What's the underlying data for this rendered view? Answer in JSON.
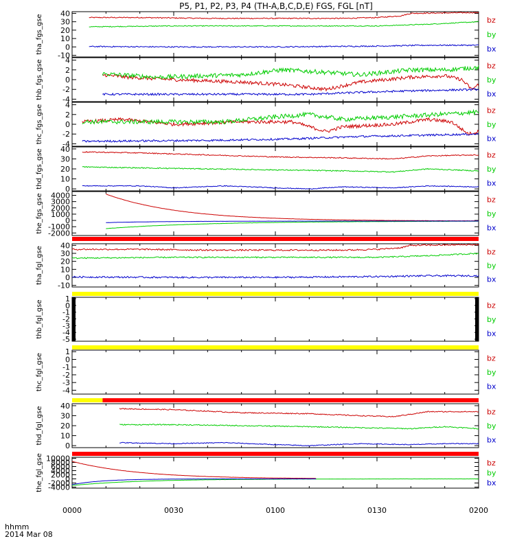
{
  "title": "P5, P1, P2, P3, P4 (TH-A,B,C,D,E) FGS, FGL [nT]",
  "footer": {
    "label1": "hhmm",
    "label2": "2014 Mar 08"
  },
  "colors": {
    "bz": "#cc0000",
    "by": "#00cc00",
    "bx": "#0000cc",
    "red_bar": "#ff0000",
    "yellow_bar": "#ffff00"
  },
  "chart_data": {
    "type": "line",
    "x_axis": {
      "start_hhmm": "0000",
      "end_hhmm": "0200",
      "tick_labels": [
        "0000",
        "0030",
        "0100",
        "0130",
        "0200"
      ]
    },
    "panels": [
      {
        "ylabel": "tha_fgs_gse",
        "yticks": [
          40,
          30,
          20,
          10,
          0,
          -10
        ],
        "ylim": [
          -12,
          42
        ],
        "series": [
          {
            "name": "bz",
            "start_min": 5,
            "end_min": 120,
            "points": [
              [
                5,
                35
              ],
              [
                20,
                35
              ],
              [
                40,
                34
              ],
              [
                60,
                34
              ],
              [
                80,
                34
              ],
              [
                90,
                35
              ],
              [
                97,
                37
              ],
              [
                100,
                40
              ],
              [
                120,
                41
              ]
            ],
            "noise": 0.6
          },
          {
            "name": "by",
            "start_min": 5,
            "end_min": 120,
            "points": [
              [
                5,
                24
              ],
              [
                30,
                25
              ],
              [
                60,
                25
              ],
              [
                90,
                25
              ],
              [
                105,
                27
              ],
              [
                120,
                30
              ]
            ],
            "noise": 0.5
          },
          {
            "name": "bx",
            "start_min": 5,
            "end_min": 120,
            "points": [
              [
                5,
                0.5
              ],
              [
                30,
                0
              ],
              [
                60,
                0
              ],
              [
                90,
                1
              ],
              [
                105,
                2
              ],
              [
                120,
                2
              ]
            ],
            "noise": 0.7
          }
        ]
      },
      {
        "ylabel": "thb_fgs_gse",
        "yticks": [
          4,
          2,
          0,
          -2,
          -4
        ],
        "ylim": [
          -4.5,
          4.5
        ],
        "series": [
          {
            "name": "bz",
            "start_min": 9,
            "end_min": 120,
            "points": [
              [
                9,
                1
              ],
              [
                16,
                0.5
              ],
              [
                30,
                0
              ],
              [
                50,
                -0.5
              ],
              [
                62,
                -1
              ],
              [
                75,
                -2
              ],
              [
                85,
                -0.5
              ],
              [
                100,
                0.5
              ],
              [
                110,
                0.8
              ],
              [
                115,
                0
              ],
              [
                118,
                -2
              ],
              [
                120,
                -1
              ]
            ],
            "noise": 0.35
          },
          {
            "name": "by",
            "start_min": 9,
            "end_min": 120,
            "points": [
              [
                9,
                1.2
              ],
              [
                25,
                0.5
              ],
              [
                50,
                1
              ],
              [
                62,
                2
              ],
              [
                75,
                1.5
              ],
              [
                85,
                1
              ],
              [
                100,
                2
              ],
              [
                110,
                2
              ],
              [
                120,
                2.5
              ]
            ],
            "noise": 0.45
          },
          {
            "name": "bx",
            "start_min": 9,
            "end_min": 120,
            "points": [
              [
                9,
                -3
              ],
              [
                40,
                -3
              ],
              [
                70,
                -3
              ],
              [
                85,
                -2.6
              ],
              [
                100,
                -2.3
              ],
              [
                120,
                -2
              ]
            ],
            "noise": 0.2
          }
        ]
      },
      {
        "ylabel": "thc_fgs_gse",
        "yticks": [
          4,
          2,
          0,
          -2,
          -4
        ],
        "ylim": [
          -4.5,
          4.5
        ],
        "series": [
          {
            "name": "bz",
            "start_min": 3,
            "end_min": 120,
            "points": [
              [
                3,
                0.5
              ],
              [
                15,
                1
              ],
              [
                30,
                0
              ],
              [
                50,
                0.5
              ],
              [
                65,
                0.5
              ],
              [
                75,
                -1.5
              ],
              [
                80,
                -0.5
              ],
              [
                95,
                0
              ],
              [
                105,
                1
              ],
              [
                112,
                0.5
              ],
              [
                117,
                -2
              ],
              [
                120,
                -1.5
              ]
            ],
            "noise": 0.35
          },
          {
            "name": "by",
            "start_min": 3,
            "end_min": 120,
            "points": [
              [
                3,
                0.5
              ],
              [
                20,
                0.5
              ],
              [
                45,
                0.5
              ],
              [
                60,
                1.5
              ],
              [
                70,
                2
              ],
              [
                80,
                1
              ],
              [
                95,
                1.5
              ],
              [
                108,
                2
              ],
              [
                120,
                2.5
              ]
            ],
            "noise": 0.45
          },
          {
            "name": "bx",
            "start_min": 3,
            "end_min": 120,
            "points": [
              [
                3,
                -3.5
              ],
              [
                40,
                -3.3
              ],
              [
                65,
                -3
              ],
              [
                85,
                -2.5
              ],
              [
                100,
                -2.3
              ],
              [
                120,
                -2
              ]
            ],
            "noise": 0.2
          }
        ]
      },
      {
        "ylabel": "thd_fgs_gse",
        "yticks": [
          40,
          30,
          20,
          10,
          0
        ],
        "ylim": [
          -2,
          42
        ],
        "series": [
          {
            "name": "bz",
            "start_min": 3,
            "end_min": 120,
            "points": [
              [
                3,
                37
              ],
              [
                20,
                36
              ],
              [
                40,
                34
              ],
              [
                60,
                32
              ],
              [
                80,
                31
              ],
              [
                95,
                30
              ],
              [
                105,
                33
              ],
              [
                120,
                34
              ]
            ],
            "noise": 0.5
          },
          {
            "name": "by",
            "start_min": 3,
            "end_min": 120,
            "points": [
              [
                3,
                22
              ],
              [
                20,
                21
              ],
              [
                40,
                20
              ],
              [
                60,
                19
              ],
              [
                80,
                18
              ],
              [
                95,
                17
              ],
              [
                105,
                20
              ],
              [
                120,
                18
              ]
            ],
            "noise": 0.5
          },
          {
            "name": "bx",
            "start_min": 3,
            "end_min": 120,
            "points": [
              [
                3,
                3
              ],
              [
                20,
                3
              ],
              [
                30,
                1
              ],
              [
                45,
                3
              ],
              [
                60,
                1
              ],
              [
                70,
                0
              ],
              [
                80,
                2
              ],
              [
                95,
                1
              ],
              [
                105,
                3
              ],
              [
                120,
                2
              ]
            ],
            "noise": 0.4
          }
        ]
      },
      {
        "ylabel": "the_fgs_gse",
        "yticks": [
          4000,
          3000,
          2000,
          1000,
          0,
          -1000,
          -2000
        ],
        "ylim": [
          -2400,
          4600
        ],
        "series": [
          {
            "name": "bz",
            "start_min": 10,
            "end_min": 120,
            "curve": "decay",
            "a": 4200,
            "b": -100,
            "tau": 22,
            "noise": 15
          },
          {
            "name": "by",
            "start_min": 10,
            "end_min": 120,
            "curve": "rise",
            "a": -1300,
            "b": -100,
            "tau": 30,
            "noise": 15
          },
          {
            "name": "bx",
            "start_min": 10,
            "end_min": 120,
            "curve": "rise",
            "a": -350,
            "b": -100,
            "tau": 18,
            "noise": 10
          }
        ],
        "bar": {
          "color": "red",
          "segments": [
            [
              0,
              120
            ]
          ]
        }
      },
      {
        "ylabel": "tha_fgl_gse",
        "yticks": [
          40,
          30,
          20,
          10,
          0,
          -10
        ],
        "ylim": [
          -12,
          42
        ],
        "series": [
          {
            "name": "bz",
            "start_min": 0,
            "end_min": 120,
            "points": [
              [
                0,
                35
              ],
              [
                20,
                35
              ],
              [
                40,
                34
              ],
              [
                60,
                34
              ],
              [
                80,
                34
              ],
              [
                90,
                35
              ],
              [
                97,
                37
              ],
              [
                100,
                40
              ],
              [
                120,
                41
              ]
            ],
            "noise": 0.9
          },
          {
            "name": "by",
            "start_min": 0,
            "end_min": 120,
            "points": [
              [
                0,
                24
              ],
              [
                30,
                25
              ],
              [
                60,
                25
              ],
              [
                90,
                25
              ],
              [
                105,
                27
              ],
              [
                120,
                30
              ]
            ],
            "noise": 0.8
          },
          {
            "name": "bx",
            "start_min": 0,
            "end_min": 120,
            "points": [
              [
                0,
                0.5
              ],
              [
                30,
                0
              ],
              [
                60,
                0
              ],
              [
                90,
                1
              ],
              [
                105,
                2
              ],
              [
                120,
                2
              ]
            ],
            "noise": 1.0
          }
        ],
        "bar": {
          "color": "yellow",
          "segments": [
            [
              0,
              120
            ]
          ]
        }
      },
      {
        "ylabel": "thb_fgl_gse",
        "yticks": [
          1,
          0,
          -1,
          -2,
          -3,
          -4,
          -5
        ],
        "ylim": [
          -5.3,
          1.2
        ],
        "series": [],
        "edge_marks": true,
        "bar": {
          "color": "yellow",
          "segments": [
            [
              0,
              120
            ]
          ]
        }
      },
      {
        "ylabel": "thc_fgl_gse",
        "yticks": [
          1,
          0,
          -1,
          -2,
          -3,
          -4
        ],
        "ylim": [
          -4.5,
          1.2
        ],
        "series": [],
        "bar": {
          "color": "split",
          "segments": [
            [
              0,
              9,
              "yellow"
            ],
            [
              9,
              120,
              "red"
            ]
          ]
        }
      },
      {
        "ylabel": "thd_fgl_gse",
        "yticks": [
          40,
          30,
          20,
          10,
          0
        ],
        "ylim": [
          -2,
          42
        ],
        "series": [
          {
            "name": "bz",
            "start_min": 14,
            "end_min": 120,
            "points": [
              [
                14,
                37
              ],
              [
                30,
                36
              ],
              [
                50,
                33
              ],
              [
                70,
                32
              ],
              [
                85,
                30
              ],
              [
                95,
                29
              ],
              [
                105,
                34
              ],
              [
                120,
                34
              ]
            ],
            "noise": 0.5
          },
          {
            "name": "by",
            "start_min": 14,
            "end_min": 120,
            "points": [
              [
                14,
                21
              ],
              [
                30,
                21
              ],
              [
                50,
                20
              ],
              [
                70,
                19
              ],
              [
                85,
                18
              ],
              [
                100,
                17
              ],
              [
                110,
                19
              ],
              [
                120,
                17
              ]
            ],
            "noise": 0.5
          },
          {
            "name": "bx",
            "start_min": 14,
            "end_min": 120,
            "points": [
              [
                14,
                3
              ],
              [
                30,
                2
              ],
              [
                45,
                3
              ],
              [
                60,
                1
              ],
              [
                70,
                0
              ],
              [
                85,
                2
              ],
              [
                100,
                1
              ],
              [
                110,
                2
              ],
              [
                120,
                2
              ]
            ],
            "noise": 0.4
          }
        ],
        "bar": {
          "color": "red",
          "segments": [
            [
              0,
              120
            ]
          ]
        }
      },
      {
        "ylabel": "the_fgl_gse",
        "yticks": [
          10000,
          8000,
          6000,
          4000,
          2000,
          0,
          -2000,
          -4000
        ],
        "ylim": [
          -4500,
          10500
        ],
        "series": [
          {
            "name": "bz",
            "start_min": 0,
            "end_min": 72,
            "curve": "decay",
            "a": 8500,
            "b": 0,
            "tau": 20,
            "noise": 40
          },
          {
            "name": "by",
            "start_min": 0,
            "end_min": 120,
            "curve": "rise",
            "a": -3200,
            "b": 0,
            "tau": 20,
            "noise": 30
          },
          {
            "name": "bx",
            "start_min": 0,
            "end_min": 72,
            "curve": "rise",
            "a": -2800,
            "b": 0,
            "tau": 9,
            "noise": 25
          }
        ]
      }
    ],
    "legend": [
      "bz",
      "by",
      "bx"
    ]
  }
}
